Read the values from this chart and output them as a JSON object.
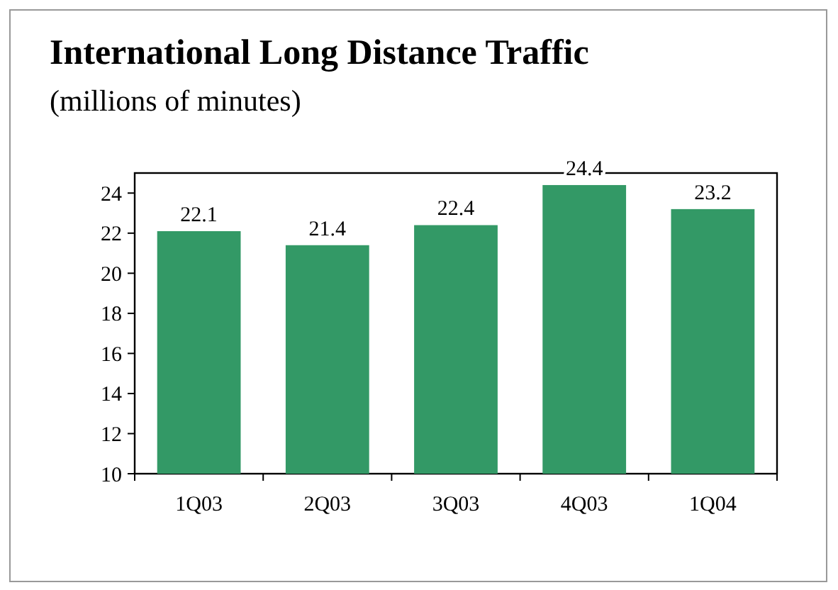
{
  "chart_data": {
    "type": "bar",
    "title": "International Long Distance Traffic",
    "subtitle": "(millions of minutes)",
    "categories": [
      "1Q03",
      "2Q03",
      "3Q03",
      "4Q03",
      "1Q04"
    ],
    "values": [
      22.1,
      21.4,
      22.4,
      24.4,
      23.2
    ],
    "color": "#339966",
    "ylim": [
      10,
      25
    ],
    "yticks": [
      10,
      12,
      14,
      16,
      18,
      20,
      22,
      24
    ],
    "grid": false,
    "data_labels": true
  }
}
